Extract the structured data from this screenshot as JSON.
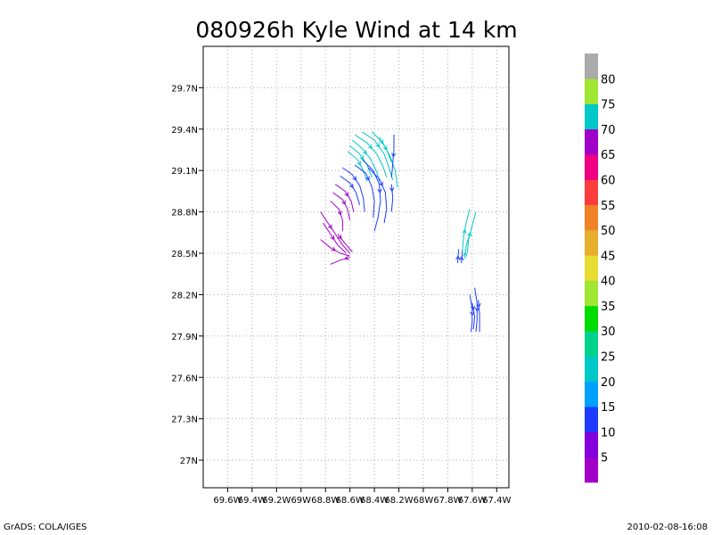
{
  "footer": {
    "software": "GrADS: COLA/IGES",
    "timestamp": "2010-02-08-16:08"
  },
  "colors": {
    "grid": "#aaaaaa",
    "frame": "#000000"
  },
  "chart_data": {
    "type": "streamline",
    "title": "080926h Kyle Wind at 14 km",
    "xlabel": "",
    "ylabel": "",
    "xlim": [
      -69.8,
      -67.3
    ],
    "ylim": [
      26.8,
      30.0
    ],
    "grid": true,
    "x_ticks": [
      -69.6,
      -69.4,
      -69.2,
      -69.0,
      -68.8,
      -68.6,
      -68.4,
      -68.2,
      -68.0,
      -67.8,
      -67.6,
      -67.4
    ],
    "x_tick_labels": [
      "69.6W",
      "69.4W",
      "69.2W",
      "69W",
      "68.8W",
      "68.6W",
      "68.4W",
      "68.2W",
      "68W",
      "67.8W",
      "67.6W",
      "67.4W"
    ],
    "y_ticks": [
      27.0,
      27.3,
      27.6,
      27.9,
      28.2,
      28.5,
      28.8,
      29.1,
      29.4,
      29.7
    ],
    "y_tick_labels": [
      "27N",
      "27.3N",
      "27.6N",
      "27.9N",
      "28.2N",
      "28.5N",
      "28.8N",
      "29.1N",
      "29.4N",
      "29.7N"
    ],
    "colorbar": {
      "labels": [
        "5",
        "10",
        "15",
        "20",
        "25",
        "30",
        "35",
        "40",
        "45",
        "50",
        "55",
        "60",
        "65",
        "70",
        "75",
        "80"
      ],
      "colors": [
        "#a000c8",
        "#8200dc",
        "#1e3cff",
        "#00a0ff",
        "#00c8c8",
        "#00d28c",
        "#00dc00",
        "#a0e632",
        "#e6dc32",
        "#e6af2d",
        "#f08228",
        "#fa3c3c",
        "#f00082",
        "#a000c8",
        "#00c8c8",
        "#a0e632",
        "#aaaaaa"
      ]
    },
    "streamlines": [
      {
        "color": "#00c8c8",
        "points": [
          [
            -68.56,
            29.36
          ],
          [
            -68.46,
            29.3
          ],
          [
            -68.38,
            29.22
          ],
          [
            -68.33,
            29.13
          ],
          [
            -68.3,
            29.05
          ]
        ]
      },
      {
        "color": "#00c8c8",
        "points": [
          [
            -68.58,
            29.32
          ],
          [
            -68.5,
            29.26
          ],
          [
            -68.43,
            29.18
          ],
          [
            -68.38,
            29.09
          ],
          [
            -68.36,
            29.02
          ]
        ]
      },
      {
        "color": "#00c8c8",
        "points": [
          [
            -68.6,
            29.28
          ],
          [
            -68.52,
            29.22
          ],
          [
            -68.46,
            29.14
          ],
          [
            -68.42,
            29.05
          ]
        ]
      },
      {
        "color": "#00c8c8",
        "points": [
          [
            -68.62,
            29.24
          ],
          [
            -68.54,
            29.18
          ],
          [
            -68.49,
            29.1
          ],
          [
            -68.46,
            29.02
          ]
        ]
      },
      {
        "color": "#00c8c8",
        "points": [
          [
            -68.5,
            29.38
          ],
          [
            -68.4,
            29.32
          ],
          [
            -68.32,
            29.22
          ],
          [
            -68.28,
            29.12
          ],
          [
            -68.25,
            29.03
          ]
        ]
      },
      {
        "color": "#00c8c8",
        "points": [
          [
            -68.42,
            29.38
          ],
          [
            -68.33,
            29.3
          ],
          [
            -68.27,
            29.2
          ],
          [
            -68.23,
            29.1
          ],
          [
            -68.21,
            28.98
          ]
        ]
      },
      {
        "color": "#00c8c8",
        "points": [
          [
            -68.36,
            29.34
          ],
          [
            -68.3,
            29.25
          ],
          [
            -68.26,
            29.16
          ]
        ]
      },
      {
        "color": "#1e3cff",
        "points": [
          [
            -68.24,
            29.36
          ],
          [
            -68.24,
            29.25
          ],
          [
            -68.25,
            29.15
          ],
          [
            -68.26,
            29.05
          ]
        ]
      },
      {
        "color": "#1e3cff",
        "points": [
          [
            -68.66,
            29.12
          ],
          [
            -68.58,
            29.07
          ],
          [
            -68.52,
            28.99
          ],
          [
            -68.49,
            28.9
          ],
          [
            -68.48,
            28.8
          ]
        ]
      },
      {
        "color": "#1e3cff",
        "points": [
          [
            -68.68,
            29.06
          ],
          [
            -68.6,
            29.01
          ],
          [
            -68.55,
            28.94
          ],
          [
            -68.52,
            28.85
          ]
        ]
      },
      {
        "color": "#1e3cff",
        "points": [
          [
            -68.56,
            29.14
          ],
          [
            -68.47,
            29.08
          ],
          [
            -68.42,
            28.98
          ],
          [
            -68.4,
            28.88
          ],
          [
            -68.41,
            28.76
          ]
        ]
      },
      {
        "color": "#1e3cff",
        "points": [
          [
            -68.5,
            29.18
          ],
          [
            -68.41,
            29.1
          ],
          [
            -68.36,
            29.0
          ],
          [
            -68.35,
            28.88
          ],
          [
            -68.37,
            28.76
          ],
          [
            -68.4,
            28.66
          ]
        ]
      },
      {
        "color": "#1e3cff",
        "points": [
          [
            -68.45,
            29.12
          ],
          [
            -68.36,
            29.04
          ],
          [
            -68.31,
            28.94
          ],
          [
            -68.3,
            28.82
          ],
          [
            -68.32,
            28.72
          ]
        ]
      },
      {
        "color": "#1e3cff",
        "points": [
          [
            -68.26,
            29.0
          ],
          [
            -68.25,
            28.9
          ],
          [
            -68.26,
            28.8
          ]
        ]
      },
      {
        "color": "#a000c8",
        "points": [
          [
            -68.72,
            29.0
          ],
          [
            -68.64,
            28.95
          ],
          [
            -68.59,
            28.88
          ],
          [
            -68.57,
            28.8
          ]
        ]
      },
      {
        "color": "#a000c8",
        "points": [
          [
            -68.74,
            28.94
          ],
          [
            -68.66,
            28.89
          ],
          [
            -68.62,
            28.82
          ],
          [
            -68.6,
            28.74
          ]
        ]
      },
      {
        "color": "#a000c8",
        "points": [
          [
            -68.76,
            28.88
          ],
          [
            -68.69,
            28.82
          ],
          [
            -68.66,
            28.74
          ],
          [
            -68.66,
            28.66
          ]
        ]
      },
      {
        "color": "#a000c8",
        "points": [
          [
            -68.84,
            28.8
          ],
          [
            -68.78,
            28.72
          ],
          [
            -68.72,
            28.64
          ],
          [
            -68.66,
            28.56
          ],
          [
            -68.6,
            28.5
          ]
        ]
      },
      {
        "color": "#a000c8",
        "points": [
          [
            -68.82,
            28.72
          ],
          [
            -68.76,
            28.64
          ],
          [
            -68.7,
            28.56
          ],
          [
            -68.63,
            28.5
          ]
        ]
      },
      {
        "color": "#a000c8",
        "points": [
          [
            -68.84,
            28.6
          ],
          [
            -68.76,
            28.54
          ],
          [
            -68.68,
            28.5
          ],
          [
            -68.6,
            28.48
          ]
        ]
      },
      {
        "color": "#a000c8",
        "points": [
          [
            -68.6,
            28.47
          ],
          [
            -68.68,
            28.45
          ],
          [
            -68.76,
            28.42
          ]
        ]
      },
      {
        "color": "#a000c8",
        "points": [
          [
            -68.7,
            28.64
          ],
          [
            -68.64,
            28.57
          ],
          [
            -68.58,
            28.51
          ]
        ]
      },
      {
        "color": "#00c8c8",
        "points": [
          [
            -67.68,
            28.52
          ],
          [
            -67.67,
            28.62
          ],
          [
            -67.65,
            28.72
          ],
          [
            -67.62,
            28.82
          ]
        ]
      },
      {
        "color": "#00c8c8",
        "points": [
          [
            -67.64,
            28.5
          ],
          [
            -67.63,
            28.6
          ],
          [
            -67.6,
            28.7
          ],
          [
            -67.57,
            28.8
          ]
        ]
      },
      {
        "color": "#00c8c8",
        "points": [
          [
            -67.66,
            28.46
          ],
          [
            -67.65,
            28.55
          ],
          [
            -67.62,
            28.64
          ]
        ]
      },
      {
        "color": "#1e3cff",
        "points": [
          [
            -67.72,
            28.43
          ],
          [
            -67.71,
            28.53
          ]
        ]
      },
      {
        "color": "#1e3cff",
        "points": [
          [
            -67.69,
            28.43
          ],
          [
            -67.68,
            28.52
          ]
        ]
      },
      {
        "color": "#1e3cff",
        "points": [
          [
            -67.62,
            28.2
          ],
          [
            -67.6,
            28.1
          ],
          [
            -67.6,
            28.0
          ],
          [
            -67.61,
            27.93
          ]
        ]
      },
      {
        "color": "#1e3cff",
        "points": [
          [
            -67.58,
            28.25
          ],
          [
            -67.56,
            28.14
          ],
          [
            -67.56,
            28.02
          ],
          [
            -67.57,
            27.93
          ]
        ]
      },
      {
        "color": "#1e3cff",
        "points": [
          [
            -67.55,
            28.16
          ],
          [
            -67.54,
            28.06
          ],
          [
            -67.54,
            27.93
          ]
        ]
      },
      {
        "color": "#1e3cff",
        "points": [
          [
            -67.6,
            28.14
          ],
          [
            -67.58,
            28.04
          ],
          [
            -67.59,
            27.95
          ]
        ]
      }
    ]
  }
}
